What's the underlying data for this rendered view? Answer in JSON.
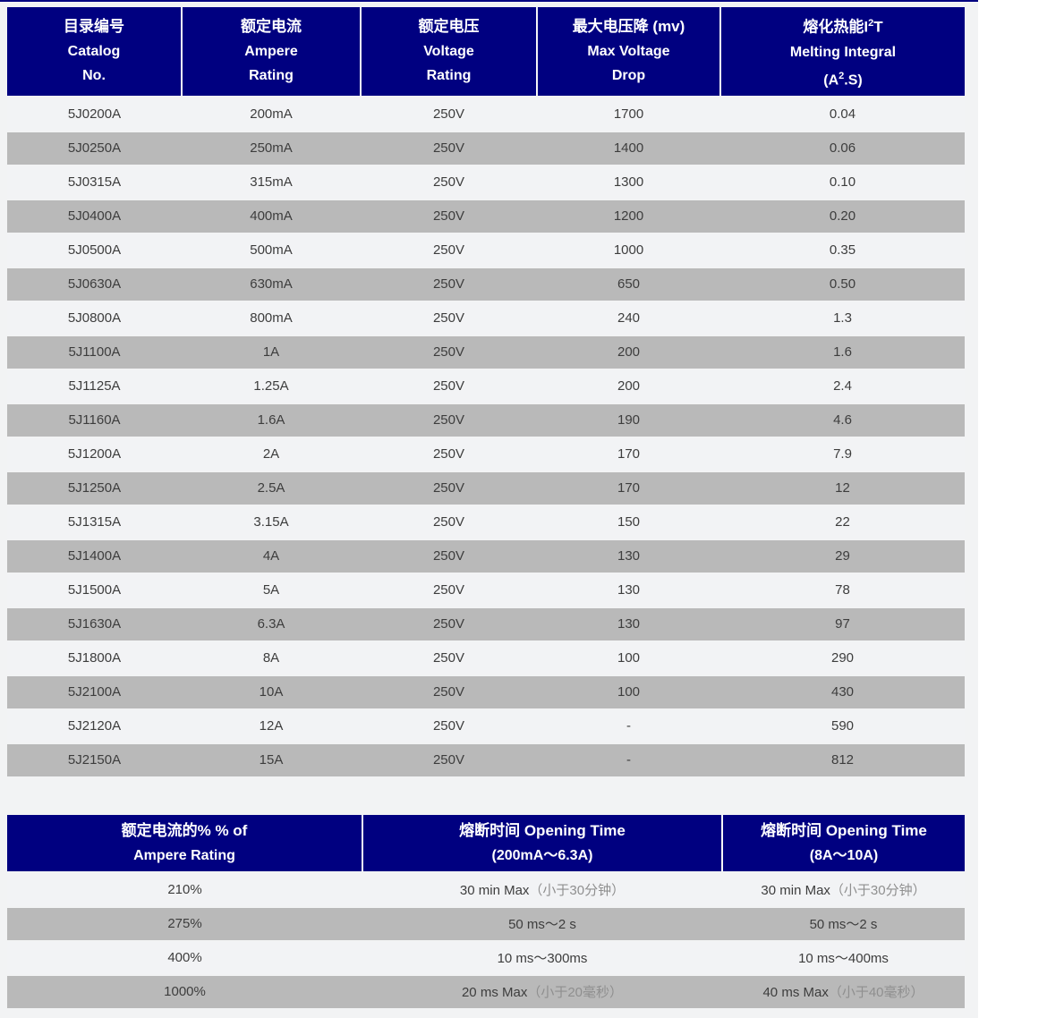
{
  "colors": {
    "header_bg": "#000080",
    "header_text": "#ffffff",
    "row_light": "#f2f3f5",
    "row_gray": "#b9b9b9",
    "body_text": "#3d3d3d",
    "note_text": "#8f8f8f",
    "content_bg": "#f2f3f4"
  },
  "table1": {
    "headers": {
      "catalog": {
        "zh": "目录编号",
        "en1": "Catalog",
        "en2": "No."
      },
      "ampere": {
        "zh": "额定电流",
        "en1": "Ampere",
        "en2": "Rating"
      },
      "voltage": {
        "zh": "额定电压",
        "en1": "Voltage",
        "en2": "Rating"
      },
      "drop": {
        "zh": "最大电压降 (mv)",
        "en1": "Max Voltage",
        "en2": "Drop"
      },
      "melting": {
        "zh_prefix": "熔化热能I",
        "zh_sup": "2",
        "zh_suffix": "T",
        "en1": "Melting Integral",
        "en2_prefix": "(A",
        "en2_sup": "2",
        "en2_suffix": ".S)"
      }
    },
    "rows": [
      [
        "5J0200A",
        "200mA",
        "250V",
        "1700",
        "0.04"
      ],
      [
        "5J0250A",
        "250mA",
        "250V",
        "1400",
        "0.06"
      ],
      [
        "5J0315A",
        "315mA",
        "250V",
        "1300",
        "0.10"
      ],
      [
        "5J0400A",
        "400mA",
        "250V",
        "1200",
        "0.20"
      ],
      [
        "5J0500A",
        "500mA",
        "250V",
        "1000",
        "0.35"
      ],
      [
        "5J0630A",
        "630mA",
        "250V",
        "650",
        "0.50"
      ],
      [
        "5J0800A",
        "800mA",
        "250V",
        "240",
        "1.3"
      ],
      [
        "5J1100A",
        "1A",
        "250V",
        "200",
        "1.6"
      ],
      [
        "5J1125A",
        "1.25A",
        "250V",
        "200",
        "2.4"
      ],
      [
        "5J1160A",
        "1.6A",
        "250V",
        "190",
        "4.6"
      ],
      [
        "5J1200A",
        "2A",
        "250V",
        "170",
        "7.9"
      ],
      [
        "5J1250A",
        "2.5A",
        "250V",
        "170",
        "12"
      ],
      [
        "5J1315A",
        "3.15A",
        "250V",
        "150",
        "22"
      ],
      [
        "5J1400A",
        "4A",
        "250V",
        "130",
        "29"
      ],
      [
        "5J1500A",
        "5A",
        "250V",
        "130",
        "78"
      ],
      [
        "5J1630A",
        "6.3A",
        "250V",
        "130",
        "97"
      ],
      [
        "5J1800A",
        "8A",
        "250V",
        "100",
        "290"
      ],
      [
        "5J2100A",
        "10A",
        "250V",
        "100",
        "430"
      ],
      [
        "5J2120A",
        "12A",
        "250V",
        "-",
        "590"
      ],
      [
        "5J2150A",
        "15A",
        "250V",
        "-",
        "812"
      ]
    ]
  },
  "table2": {
    "headers": {
      "percent": {
        "line1": "额定电流的%  % of",
        "line2": "Ampere Rating"
      },
      "time_low": {
        "line1": "熔断时间 Opening Time",
        "line2": "(200mA～6.3A)"
      },
      "time_high": {
        "line1": "熔断时间 Opening Time",
        "line2": "(8A～10A)"
      }
    },
    "rows": [
      {
        "pct": "210%",
        "low_main": "30 min Max",
        "low_note": "（小于30分钟）",
        "high_main": "30 min Max",
        "high_note": "（小于30分钟）"
      },
      {
        "pct": "275%",
        "low_main": "50 ms～2 s",
        "low_note": "",
        "high_main": "50 ms～2 s",
        "high_note": ""
      },
      {
        "pct": "400%",
        "low_main": "10 ms～300ms",
        "low_note": "",
        "high_main": "10 ms～400ms",
        "high_note": ""
      },
      {
        "pct": "1000%",
        "low_main": "20 ms Max",
        "low_note": "（小于20毫秒）",
        "high_main": "40 ms Max",
        "high_note": "（小于40毫秒）"
      }
    ]
  }
}
